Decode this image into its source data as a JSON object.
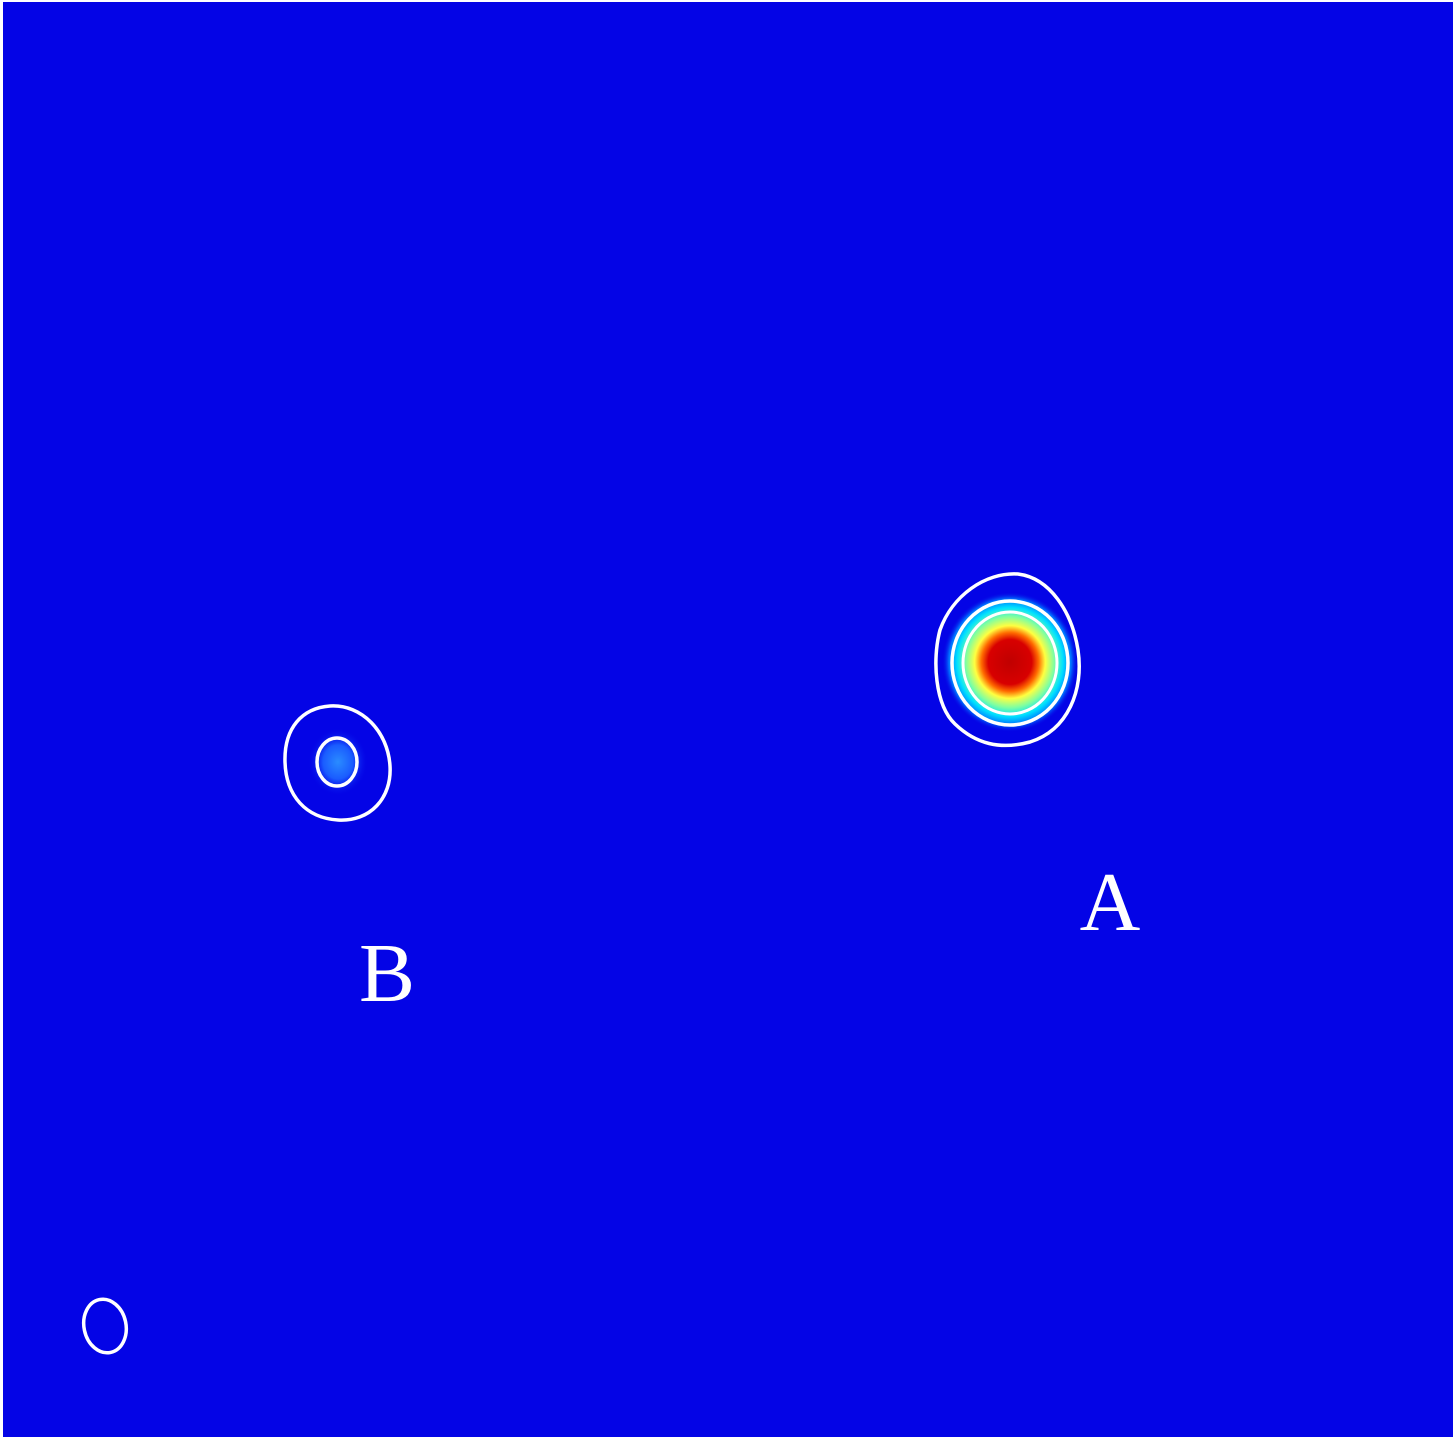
{
  "labels": [
    {
      "text": "A"
    },
    {
      "text": "B"
    }
  ]
}
